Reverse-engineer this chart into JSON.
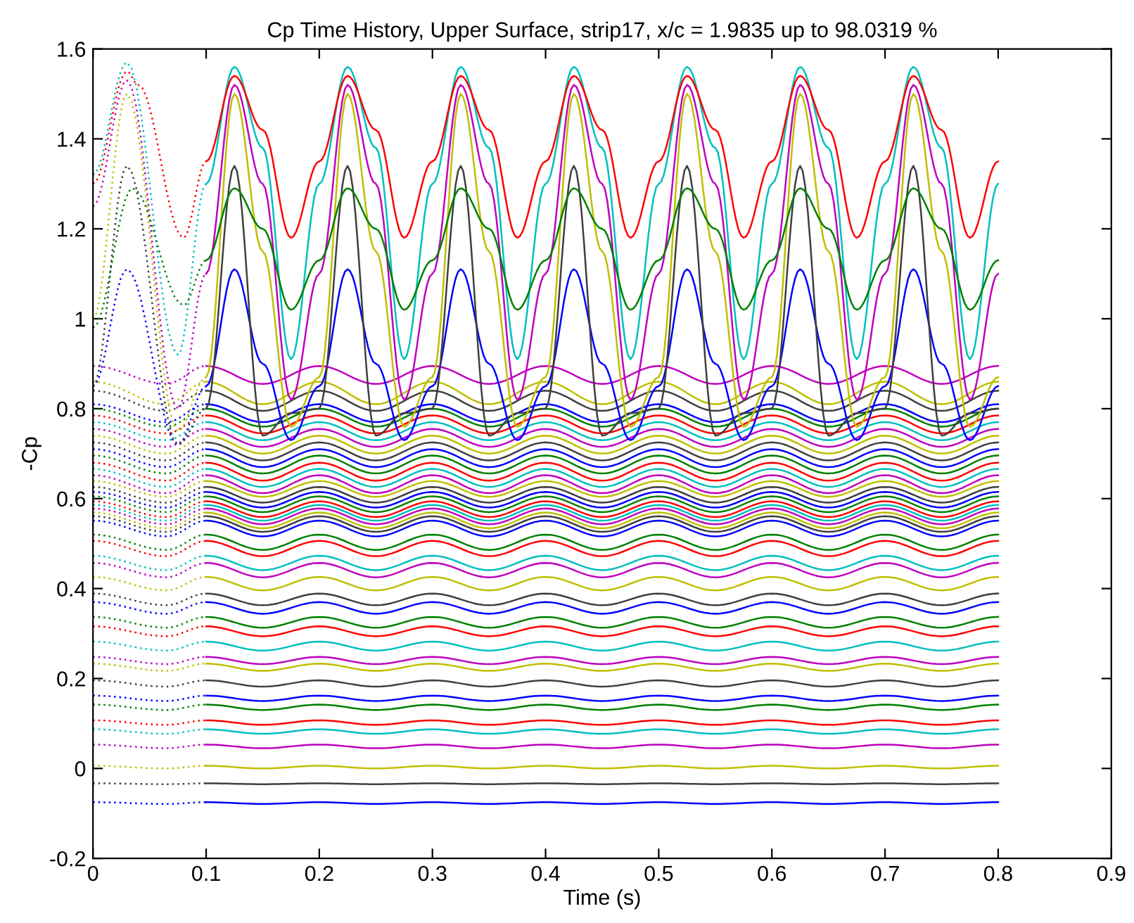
{
  "chart_data": {
    "type": "line",
    "title": "Cp Time History, Upper Surface, strip17, x/c = 1.9835 up to 98.0319 %",
    "xlabel": "Time (s)",
    "ylabel": "-Cp",
    "xlim": [
      0,
      0.9
    ],
    "ylim": [
      -0.2,
      1.6
    ],
    "xticks": [
      0,
      0.1,
      0.2,
      0.3,
      0.4,
      0.5,
      0.6,
      0.7,
      0.8,
      0.9
    ],
    "yticks": [
      -0.2,
      0,
      0.2,
      0.4,
      0.6,
      0.8,
      1,
      1.2,
      1.4,
      1.6
    ],
    "line_style": "solid",
    "x": [
      0.1,
      0.15,
      0.2,
      0.25,
      0.3,
      0.35,
      0.4,
      0.45,
      0.5,
      0.55,
      0.6,
      0.65,
      0.7,
      0.75,
      0.8
    ],
    "series": [
      {
        "color": "#0000ff",
        "line_style": "dotted",
        "x": [
          0,
          0.065,
          0.1
        ],
        "values": [
          -0.075,
          -0.079,
          -0.075
        ]
      },
      {
        "color": "#0000ff",
        "values": [
          -0.075,
          -0.079,
          -0.075,
          -0.079,
          -0.075,
          -0.079,
          -0.075,
          -0.079,
          -0.075,
          -0.079,
          -0.075,
          -0.079,
          -0.075,
          -0.079,
          -0.075
        ]
      },
      {
        "color": "#3f3f3f",
        "line_style": "dotted",
        "x": [
          0,
          0.065,
          0.1
        ],
        "values": [
          -0.033,
          -0.035,
          -0.033
        ]
      },
      {
        "color": "#3f3f3f",
        "values": [
          -0.033,
          -0.035,
          -0.033,
          -0.035,
          -0.033,
          -0.035,
          -0.033,
          -0.035,
          -0.033,
          -0.035,
          -0.033,
          -0.035,
          -0.033,
          -0.035,
          -0.033
        ]
      },
      {
        "color": "#bfbf00",
        "line_style": "dotted",
        "x": [
          0,
          0.065,
          0.1
        ],
        "values": [
          0.006,
          0.0,
          0.006
        ]
      },
      {
        "color": "#bfbf00",
        "values": [
          0.006,
          0.0,
          0.006,
          0.0,
          0.006,
          0.0,
          0.006,
          0.0,
          0.006,
          0.0,
          0.006,
          0.0,
          0.006,
          0.0,
          0.006
        ]
      },
      {
        "color": "#bf00bf",
        "line_style": "dotted",
        "x": [
          0,
          0.065,
          0.1
        ],
        "values": [
          0.053,
          0.045,
          0.053
        ]
      },
      {
        "color": "#bf00bf",
        "values": [
          0.053,
          0.045,
          0.053,
          0.045,
          0.053,
          0.045,
          0.053,
          0.045,
          0.053,
          0.045,
          0.053,
          0.045,
          0.053,
          0.045,
          0.053
        ]
      },
      {
        "color": "#00bfbf",
        "line_style": "dotted",
        "x": [
          0,
          0.065,
          0.1
        ],
        "values": [
          0.087,
          0.077,
          0.087
        ]
      },
      {
        "color": "#00bfbf",
        "values": [
          0.087,
          0.077,
          0.087,
          0.077,
          0.087,
          0.077,
          0.087,
          0.077,
          0.087,
          0.077,
          0.087,
          0.077,
          0.087,
          0.077,
          0.087
        ]
      },
      {
        "color": "#ff0000",
        "line_style": "dotted",
        "x": [
          0,
          0.065,
          0.1
        ],
        "values": [
          0.107,
          0.097,
          0.107
        ]
      },
      {
        "color": "#ff0000",
        "values": [
          0.107,
          0.097,
          0.107,
          0.097,
          0.107,
          0.097,
          0.107,
          0.097,
          0.107,
          0.097,
          0.107,
          0.097,
          0.107,
          0.097,
          0.107
        ]
      },
      {
        "color": "#008000",
        "line_style": "dotted",
        "x": [
          0,
          0.065,
          0.1
        ],
        "values": [
          0.142,
          0.13,
          0.142
        ]
      },
      {
        "color": "#008000",
        "values": [
          0.142,
          0.13,
          0.142,
          0.13,
          0.142,
          0.13,
          0.142,
          0.13,
          0.142,
          0.13,
          0.142,
          0.13,
          0.142,
          0.13,
          0.142
        ]
      },
      {
        "color": "#0000ff",
        "line_style": "dotted",
        "x": [
          0,
          0.065,
          0.1
        ],
        "values": [
          0.162,
          0.15,
          0.162
        ]
      },
      {
        "color": "#0000ff",
        "values": [
          0.162,
          0.15,
          0.162,
          0.15,
          0.162,
          0.15,
          0.162,
          0.15,
          0.162,
          0.15,
          0.162,
          0.15,
          0.162,
          0.15,
          0.162
        ]
      },
      {
        "color": "#3f3f3f",
        "line_style": "dotted",
        "x": [
          0,
          0.065,
          0.1
        ],
        "values": [
          0.196,
          0.182,
          0.196
        ]
      },
      {
        "color": "#3f3f3f",
        "values": [
          0.196,
          0.182,
          0.196,
          0.182,
          0.196,
          0.182,
          0.196,
          0.182,
          0.196,
          0.182,
          0.196,
          0.182,
          0.196,
          0.182,
          0.196
        ]
      },
      {
        "color": "#bfbf00",
        "line_style": "dotted",
        "x": [
          0,
          0.065,
          0.1
        ],
        "values": [
          0.233,
          0.217,
          0.233
        ]
      },
      {
        "color": "#bfbf00",
        "values": [
          0.233,
          0.217,
          0.233,
          0.217,
          0.233,
          0.217,
          0.233,
          0.217,
          0.233,
          0.217,
          0.233,
          0.217,
          0.233,
          0.217,
          0.233
        ]
      },
      {
        "color": "#bf00bf",
        "line_style": "dotted",
        "x": [
          0,
          0.065,
          0.1
        ],
        "values": [
          0.248,
          0.232,
          0.248
        ]
      },
      {
        "color": "#bf00bf",
        "values": [
          0.248,
          0.232,
          0.248,
          0.232,
          0.248,
          0.232,
          0.248,
          0.232,
          0.248,
          0.232,
          0.248,
          0.232,
          0.248,
          0.232,
          0.248
        ]
      },
      {
        "color": "#00bfbf",
        "line_style": "dotted",
        "x": [
          0,
          0.065,
          0.1
        ],
        "values": [
          0.282,
          0.262,
          0.282
        ]
      },
      {
        "color": "#00bfbf",
        "values": [
          0.282,
          0.262,
          0.282,
          0.262,
          0.282,
          0.262,
          0.282,
          0.262,
          0.282,
          0.262,
          0.282,
          0.262,
          0.282,
          0.262,
          0.282
        ]
      },
      {
        "color": "#ff0000",
        "line_style": "dotted",
        "x": [
          0,
          0.065,
          0.1
        ],
        "values": [
          0.316,
          0.294,
          0.316
        ]
      },
      {
        "color": "#ff0000",
        "values": [
          0.316,
          0.294,
          0.316,
          0.294,
          0.316,
          0.294,
          0.316,
          0.294,
          0.316,
          0.294,
          0.316,
          0.294,
          0.316,
          0.294,
          0.316
        ]
      },
      {
        "color": "#008000",
        "line_style": "dotted",
        "x": [
          0,
          0.065,
          0.1
        ],
        "values": [
          0.337,
          0.313,
          0.337
        ]
      },
      {
        "color": "#008000",
        "values": [
          0.337,
          0.313,
          0.337,
          0.313,
          0.337,
          0.313,
          0.337,
          0.313,
          0.337,
          0.313,
          0.337,
          0.313,
          0.337,
          0.313,
          0.337
        ]
      },
      {
        "color": "#0000ff",
        "line_style": "dotted",
        "x": [
          0,
          0.065,
          0.1
        ],
        "values": [
          0.37,
          0.344,
          0.37
        ]
      },
      {
        "color": "#0000ff",
        "values": [
          0.37,
          0.344,
          0.37,
          0.344,
          0.37,
          0.344,
          0.37,
          0.344,
          0.37,
          0.344,
          0.37,
          0.344,
          0.37,
          0.344,
          0.37
        ]
      },
      {
        "color": "#3f3f3f",
        "line_style": "dotted",
        "x": [
          0,
          0.065,
          0.1
        ],
        "values": [
          0.389,
          0.363,
          0.389
        ]
      },
      {
        "color": "#3f3f3f",
        "values": [
          0.389,
          0.363,
          0.389,
          0.363,
          0.389,
          0.363,
          0.389,
          0.363,
          0.389,
          0.363,
          0.389,
          0.363,
          0.389,
          0.363,
          0.389
        ]
      },
      {
        "color": "#bfbf00",
        "line_style": "dotted",
        "x": [
          0,
          0.065,
          0.1
        ],
        "values": [
          0.426,
          0.396,
          0.426
        ]
      },
      {
        "color": "#bfbf00",
        "values": [
          0.426,
          0.396,
          0.426,
          0.396,
          0.426,
          0.396,
          0.426,
          0.396,
          0.426,
          0.396,
          0.426,
          0.396,
          0.426,
          0.396,
          0.426
        ]
      },
      {
        "color": "#bf00bf",
        "line_style": "dotted",
        "x": [
          0,
          0.065,
          0.1
        ],
        "values": [
          0.457,
          0.425,
          0.457
        ]
      },
      {
        "color": "#bf00bf",
        "values": [
          0.457,
          0.425,
          0.457,
          0.425,
          0.457,
          0.425,
          0.457,
          0.425,
          0.457,
          0.425,
          0.457,
          0.425,
          0.457,
          0.425,
          0.457
        ]
      },
      {
        "color": "#00bfbf",
        "line_style": "dotted",
        "x": [
          0,
          0.065,
          0.1
        ],
        "values": [
          0.473,
          0.441,
          0.473
        ]
      },
      {
        "color": "#00bfbf",
        "values": [
          0.473,
          0.441,
          0.473,
          0.441,
          0.473,
          0.441,
          0.473,
          0.441,
          0.473,
          0.441,
          0.473,
          0.441,
          0.473,
          0.441,
          0.473
        ]
      },
      {
        "color": "#ff0000",
        "line_style": "dotted",
        "x": [
          0,
          0.065,
          0.1
        ],
        "values": [
          0.506,
          0.472,
          0.506
        ]
      },
      {
        "color": "#ff0000",
        "values": [
          0.506,
          0.472,
          0.506,
          0.472,
          0.506,
          0.472,
          0.506,
          0.472,
          0.506,
          0.472,
          0.506,
          0.472,
          0.506,
          0.472,
          0.506
        ]
      },
      {
        "color": "#008000",
        "line_style": "dotted",
        "x": [
          0,
          0.065,
          0.1
        ],
        "values": [
          0.52,
          0.486,
          0.52
        ]
      },
      {
        "color": "#008000",
        "values": [
          0.52,
          0.486,
          0.52,
          0.486,
          0.52,
          0.486,
          0.52,
          0.486,
          0.52,
          0.486,
          0.52,
          0.486,
          0.52,
          0.486,
          0.52
        ]
      },
      {
        "color": "#0000ff",
        "line_style": "dotted",
        "x": [
          0,
          0.065,
          0.1
        ],
        "values": [
          0.551,
          0.516,
          0.551
        ]
      },
      {
        "color": "#0000ff",
        "values": [
          0.551,
          0.516,
          0.551,
          0.516,
          0.551,
          0.516,
          0.551,
          0.516,
          0.551,
          0.516,
          0.551,
          0.516,
          0.551,
          0.516,
          0.551
        ]
      },
      {
        "color": "#3f3f3f",
        "line_style": "dotted",
        "x": [
          0,
          0.065,
          0.1
        ],
        "values": [
          0.561,
          0.526,
          0.561
        ]
      },
      {
        "color": "#3f3f3f",
        "values": [
          0.561,
          0.526,
          0.561,
          0.526,
          0.561,
          0.526,
          0.561,
          0.526,
          0.561,
          0.526,
          0.561,
          0.526,
          0.561,
          0.526,
          0.561
        ]
      },
      {
        "color": "#bfbf00",
        "line_style": "dotted",
        "x": [
          0,
          0.065,
          0.1
        ],
        "values": [
          0.569,
          0.534,
          0.569
        ]
      },
      {
        "color": "#bfbf00",
        "values": [
          0.569,
          0.534,
          0.569,
          0.534,
          0.569,
          0.534,
          0.569,
          0.534,
          0.569,
          0.534,
          0.569,
          0.534,
          0.569,
          0.534,
          0.569
        ]
      },
      {
        "color": "#bf00bf",
        "line_style": "dotted",
        "x": [
          0,
          0.065,
          0.1
        ],
        "values": [
          0.578,
          0.543,
          0.578
        ]
      },
      {
        "color": "#bf00bf",
        "values": [
          0.578,
          0.543,
          0.578,
          0.543,
          0.578,
          0.543,
          0.578,
          0.543,
          0.578,
          0.543,
          0.578,
          0.543,
          0.578,
          0.543,
          0.578
        ]
      },
      {
        "color": "#00bfbf",
        "line_style": "dotted",
        "x": [
          0,
          0.065,
          0.1
        ],
        "values": [
          0.586,
          0.551,
          0.586
        ]
      },
      {
        "color": "#00bfbf",
        "values": [
          0.586,
          0.551,
          0.586,
          0.551,
          0.586,
          0.551,
          0.586,
          0.551,
          0.586,
          0.551,
          0.586,
          0.551,
          0.586,
          0.551,
          0.586
        ]
      },
      {
        "color": "#ff0000",
        "line_style": "dotted",
        "x": [
          0,
          0.065,
          0.1
        ],
        "values": [
          0.594,
          0.559,
          0.594
        ]
      },
      {
        "color": "#ff0000",
        "values": [
          0.594,
          0.559,
          0.594,
          0.559,
          0.594,
          0.559,
          0.594,
          0.559,
          0.594,
          0.559,
          0.594,
          0.559,
          0.594,
          0.559,
          0.594
        ]
      },
      {
        "color": "#008000",
        "line_style": "dotted",
        "x": [
          0,
          0.065,
          0.1
        ],
        "values": [
          0.605,
          0.57,
          0.605
        ]
      },
      {
        "color": "#008000",
        "values": [
          0.605,
          0.57,
          0.605,
          0.57,
          0.605,
          0.57,
          0.605,
          0.57,
          0.605,
          0.57,
          0.605,
          0.57,
          0.605,
          0.57,
          0.605
        ]
      },
      {
        "color": "#0000ff",
        "line_style": "dotted",
        "x": [
          0,
          0.065,
          0.1
        ],
        "values": [
          0.615,
          0.58,
          0.615
        ]
      },
      {
        "color": "#0000ff",
        "values": [
          0.615,
          0.58,
          0.615,
          0.58,
          0.615,
          0.58,
          0.615,
          0.58,
          0.615,
          0.58,
          0.615,
          0.58,
          0.615,
          0.58,
          0.615
        ]
      },
      {
        "color": "#3f3f3f",
        "line_style": "dotted",
        "x": [
          0,
          0.065,
          0.1
        ],
        "values": [
          0.626,
          0.591,
          0.626
        ]
      },
      {
        "color": "#3f3f3f",
        "values": [
          0.626,
          0.591,
          0.626,
          0.591,
          0.626,
          0.591,
          0.626,
          0.591,
          0.626,
          0.591,
          0.626,
          0.591,
          0.626,
          0.591,
          0.626
        ]
      },
      {
        "color": "#bfbf00",
        "line_style": "dotted",
        "x": [
          0,
          0.065,
          0.1
        ],
        "values": [
          0.639,
          0.604,
          0.639
        ]
      },
      {
        "color": "#bfbf00",
        "values": [
          0.639,
          0.604,
          0.639,
          0.604,
          0.639,
          0.604,
          0.639,
          0.604,
          0.639,
          0.604,
          0.639,
          0.604,
          0.639,
          0.604,
          0.639
        ]
      },
      {
        "color": "#bf00bf",
        "line_style": "dotted",
        "x": [
          0,
          0.065,
          0.1
        ],
        "values": [
          0.652,
          0.612,
          0.652
        ]
      },
      {
        "color": "#bf00bf",
        "values": [
          0.652,
          0.612,
          0.652,
          0.612,
          0.652,
          0.612,
          0.652,
          0.612,
          0.652,
          0.612,
          0.652,
          0.612,
          0.652,
          0.612,
          0.652
        ]
      },
      {
        "color": "#00bfbf",
        "line_style": "dotted",
        "x": [
          0,
          0.065,
          0.1
        ],
        "values": [
          0.666,
          0.626,
          0.666
        ]
      },
      {
        "color": "#00bfbf",
        "values": [
          0.666,
          0.626,
          0.666,
          0.626,
          0.666,
          0.626,
          0.666,
          0.626,
          0.666,
          0.626,
          0.666,
          0.626,
          0.666,
          0.626,
          0.666
        ]
      },
      {
        "color": "#ff0000",
        "line_style": "dotted",
        "x": [
          0,
          0.065,
          0.1
        ],
        "values": [
          0.68,
          0.64,
          0.68
        ]
      },
      {
        "color": "#ff0000",
        "values": [
          0.68,
          0.64,
          0.68,
          0.64,
          0.68,
          0.64,
          0.68,
          0.64,
          0.68,
          0.64,
          0.68,
          0.64,
          0.68,
          0.64,
          0.68
        ]
      },
      {
        "color": "#008000",
        "line_style": "dotted",
        "x": [
          0,
          0.065,
          0.1
        ],
        "values": [
          0.696,
          0.656,
          0.696
        ]
      },
      {
        "color": "#008000",
        "values": [
          0.696,
          0.656,
          0.696,
          0.656,
          0.696,
          0.656,
          0.696,
          0.656,
          0.696,
          0.656,
          0.696,
          0.656,
          0.696,
          0.656,
          0.696
        ]
      },
      {
        "color": "#0000ff",
        "line_style": "dotted",
        "x": [
          0,
          0.065,
          0.1
        ],
        "values": [
          0.71,
          0.67,
          0.71
        ]
      },
      {
        "color": "#0000ff",
        "values": [
          0.71,
          0.67,
          0.71,
          0.67,
          0.71,
          0.67,
          0.71,
          0.67,
          0.71,
          0.67,
          0.71,
          0.67,
          0.71,
          0.67,
          0.71
        ]
      },
      {
        "color": "#3f3f3f",
        "line_style": "dotted",
        "x": [
          0,
          0.065,
          0.1
        ],
        "values": [
          0.725,
          0.685,
          0.725
        ]
      },
      {
        "color": "#3f3f3f",
        "values": [
          0.725,
          0.685,
          0.725,
          0.685,
          0.725,
          0.685,
          0.725,
          0.685,
          0.725,
          0.685,
          0.725,
          0.685,
          0.725,
          0.685,
          0.725
        ]
      },
      {
        "color": "#bfbf00",
        "line_style": "dotted",
        "x": [
          0,
          0.065,
          0.1
        ],
        "values": [
          0.74,
          0.7,
          0.74
        ]
      },
      {
        "color": "#bfbf00",
        "values": [
          0.74,
          0.7,
          0.74,
          0.7,
          0.74,
          0.7,
          0.74,
          0.7,
          0.74,
          0.7,
          0.74,
          0.7,
          0.74,
          0.7,
          0.74
        ]
      },
      {
        "color": "#bf00bf",
        "line_style": "dotted",
        "x": [
          0,
          0.065,
          0.1
        ],
        "values": [
          0.755,
          0.715,
          0.755
        ]
      },
      {
        "color": "#bf00bf",
        "values": [
          0.755,
          0.715,
          0.755,
          0.715,
          0.755,
          0.715,
          0.755,
          0.715,
          0.755,
          0.715,
          0.755,
          0.715,
          0.755,
          0.715,
          0.755
        ]
      },
      {
        "color": "#00bfbf",
        "line_style": "dotted",
        "x": [
          0,
          0.065,
          0.1
        ],
        "values": [
          0.77,
          0.73,
          0.77
        ]
      },
      {
        "color": "#00bfbf",
        "values": [
          0.77,
          0.73,
          0.77,
          0.73,
          0.77,
          0.73,
          0.77,
          0.73,
          0.77,
          0.73,
          0.77,
          0.73,
          0.77,
          0.73,
          0.77
        ]
      },
      {
        "color": "#ff0000",
        "line_style": "dotted",
        "x": [
          0,
          0.065,
          0.1
        ],
        "values": [
          0.785,
          0.745,
          0.785
        ]
      },
      {
        "color": "#ff0000",
        "values": [
          0.785,
          0.745,
          0.785,
          0.745,
          0.785,
          0.745,
          0.785,
          0.745,
          0.785,
          0.745,
          0.785,
          0.745,
          0.785,
          0.745,
          0.785
        ]
      },
      {
        "color": "#008000",
        "line_style": "dotted",
        "x": [
          0,
          0.065,
          0.1
        ],
        "values": [
          0.8,
          0.76,
          0.8
        ]
      },
      {
        "color": "#008000",
        "values": [
          0.8,
          0.76,
          0.8,
          0.76,
          0.8,
          0.76,
          0.8,
          0.76,
          0.8,
          0.76,
          0.8,
          0.76,
          0.8,
          0.76,
          0.8
        ]
      },
      {
        "color": "#0000ff",
        "line_style": "dotted",
        "x": [
          0,
          0.065,
          0.1
        ],
        "values": [
          0.81,
          0.77,
          0.81
        ]
      },
      {
        "color": "#0000ff",
        "values": [
          0.81,
          0.77,
          0.81,
          0.77,
          0.81,
          0.77,
          0.81,
          0.77,
          0.81,
          0.77,
          0.81,
          0.77,
          0.81,
          0.77,
          0.81
        ]
      },
      {
        "color": "#3f3f3f",
        "line_style": "dotted",
        "x": [
          0,
          0.065,
          0.1
        ],
        "values": [
          0.84,
          0.795,
          0.84
        ]
      },
      {
        "color": "#3f3f3f",
        "values": [
          0.84,
          0.795,
          0.84,
          0.795,
          0.84,
          0.795,
          0.84,
          0.795,
          0.84,
          0.795,
          0.84,
          0.795,
          0.84,
          0.795,
          0.84
        ]
      },
      {
        "color": "#bfbf00",
        "line_style": "dotted",
        "x": [
          0,
          0.065,
          0.1
        ],
        "values": [
          0.86,
          0.81,
          0.86
        ]
      },
      {
        "color": "#bfbf00",
        "values": [
          0.86,
          0.81,
          0.86,
          0.81,
          0.86,
          0.81,
          0.86,
          0.81,
          0.86,
          0.81,
          0.86,
          0.81,
          0.86,
          0.81,
          0.86
        ]
      },
      {
        "color": "#bf00bf",
        "line_style": "dotted",
        "x": [
          0,
          0.065,
          0.1
        ],
        "values": [
          0.895,
          0.855,
          0.895
        ]
      },
      {
        "color": "#bf00bf",
        "values": [
          0.895,
          0.855,
          0.895,
          0.855,
          0.895,
          0.855,
          0.895,
          0.855,
          0.895,
          0.855,
          0.895,
          0.855,
          0.895,
          0.855,
          0.895
        ]
      },
      {
        "color": "#0000ff",
        "line_style": "dotted",
        "x": [
          0,
          0.03,
          0.075,
          0.1
        ],
        "values": [
          0.85,
          1.11,
          0.72,
          0.85
        ]
      },
      {
        "color": "#0000ff",
        "x": [
          0.1,
          0.125,
          0.15,
          0.175,
          0.2,
          0.225,
          0.25,
          0.275,
          0.3,
          0.325,
          0.35,
          0.375,
          0.4,
          0.425,
          0.45,
          0.475,
          0.5,
          0.525,
          0.55,
          0.575,
          0.6,
          0.625,
          0.65,
          0.675,
          0.7,
          0.725,
          0.75,
          0.775,
          0.8
        ],
        "values": [
          0.85,
          1.11,
          0.9,
          0.73,
          0.85,
          1.11,
          0.9,
          0.73,
          0.85,
          1.11,
          0.9,
          0.73,
          0.85,
          1.11,
          0.9,
          0.73,
          0.85,
          1.11,
          0.9,
          0.73,
          0.85,
          1.11,
          0.9,
          0.73,
          0.85,
          1.11,
          0.9,
          0.73,
          0.85
        ]
      },
      {
        "color": "#3f3f3f",
        "line_style": "dotted",
        "x": [
          0,
          0.03,
          0.075,
          0.1
        ],
        "values": [
          0.85,
          1.34,
          0.72,
          0.8
        ]
      },
      {
        "color": "#3f3f3f",
        "x": [
          0.1,
          0.125,
          0.15,
          0.175,
          0.2,
          0.225,
          0.25,
          0.275,
          0.3,
          0.325,
          0.35,
          0.375,
          0.4,
          0.425,
          0.45,
          0.475,
          0.5,
          0.525,
          0.55,
          0.575,
          0.6,
          0.625,
          0.65,
          0.675,
          0.7,
          0.725,
          0.75,
          0.775,
          0.8
        ],
        "values": [
          0.8,
          1.34,
          0.74,
          0.79,
          0.8,
          1.34,
          0.74,
          0.79,
          0.8,
          1.34,
          0.74,
          0.79,
          0.8,
          1.34,
          0.74,
          0.79,
          0.8,
          1.34,
          0.74,
          0.79,
          0.8,
          1.34,
          0.74,
          0.79,
          0.8,
          1.34,
          0.74,
          0.79,
          0.8
        ]
      },
      {
        "color": "#bfbf00",
        "line_style": "dotted",
        "x": [
          0,
          0.03,
          0.075,
          0.1
        ],
        "values": [
          1.0,
          1.5,
          0.75,
          0.87
        ]
      },
      {
        "color": "#bfbf00",
        "x": [
          0.1,
          0.125,
          0.15,
          0.175,
          0.2,
          0.225,
          0.25,
          0.275,
          0.3,
          0.325,
          0.35,
          0.375,
          0.4,
          0.425,
          0.45,
          0.475,
          0.5,
          0.525,
          0.55,
          0.575,
          0.6,
          0.625,
          0.65,
          0.675,
          0.7,
          0.725,
          0.75,
          0.775,
          0.8
        ],
        "values": [
          0.87,
          1.5,
          1.15,
          0.76,
          0.87,
          1.5,
          1.15,
          0.76,
          0.87,
          1.5,
          1.15,
          0.76,
          0.87,
          1.5,
          1.15,
          0.76,
          0.87,
          1.5,
          1.15,
          0.76,
          0.87,
          1.5,
          1.15,
          0.76,
          0.87,
          1.5,
          1.15,
          0.76,
          0.87
        ]
      },
      {
        "color": "#bf00bf",
        "line_style": "dotted",
        "x": [
          0,
          0.03,
          0.075,
          0.1
        ],
        "values": [
          1.25,
          1.53,
          0.8,
          1.1
        ]
      },
      {
        "color": "#bf00bf",
        "x": [
          0.1,
          0.125,
          0.15,
          0.175,
          0.2,
          0.225,
          0.25,
          0.275,
          0.3,
          0.325,
          0.35,
          0.375,
          0.4,
          0.425,
          0.45,
          0.475,
          0.5,
          0.525,
          0.55,
          0.575,
          0.6,
          0.625,
          0.65,
          0.675,
          0.7,
          0.725,
          0.75,
          0.775,
          0.8
        ],
        "values": [
          1.1,
          1.52,
          1.3,
          0.82,
          1.1,
          1.52,
          1.3,
          0.82,
          1.1,
          1.52,
          1.3,
          0.82,
          1.1,
          1.52,
          1.3,
          0.82,
          1.1,
          1.52,
          1.3,
          0.82,
          1.1,
          1.52,
          1.3,
          0.82,
          1.1,
          1.52,
          1.3,
          0.82,
          1.1
        ]
      },
      {
        "color": "#00bfbf",
        "line_style": "dotted",
        "x": [
          0,
          0.03,
          0.075,
          0.1
        ],
        "values": [
          1.32,
          1.57,
          0.92,
          1.3
        ]
      },
      {
        "color": "#00bfbf",
        "x": [
          0.1,
          0.125,
          0.15,
          0.175,
          0.2,
          0.225,
          0.25,
          0.275,
          0.3,
          0.325,
          0.35,
          0.375,
          0.4,
          0.425,
          0.45,
          0.475,
          0.5,
          0.525,
          0.55,
          0.575,
          0.6,
          0.625,
          0.65,
          0.675,
          0.7,
          0.725,
          0.75,
          0.775,
          0.8
        ],
        "values": [
          1.3,
          1.56,
          1.38,
          0.91,
          1.3,
          1.56,
          1.38,
          0.91,
          1.3,
          1.56,
          1.38,
          0.91,
          1.3,
          1.56,
          1.38,
          0.91,
          1.3,
          1.56,
          1.38,
          0.91,
          1.3,
          1.56,
          1.38,
          0.91,
          1.3,
          1.56,
          1.38,
          0.91,
          1.3
        ]
      },
      {
        "color": "#ff0000",
        "line_style": "dotted",
        "x": [
          0,
          0.03,
          0.04,
          0.08,
          0.1
        ],
        "values": [
          1.3,
          1.55,
          1.52,
          1.18,
          1.35
        ]
      },
      {
        "color": "#ff0000",
        "x": [
          0.1,
          0.125,
          0.15,
          0.175,
          0.2,
          0.225,
          0.25,
          0.275,
          0.3,
          0.325,
          0.35,
          0.375,
          0.4,
          0.425,
          0.45,
          0.475,
          0.5,
          0.525,
          0.55,
          0.575,
          0.6,
          0.625,
          0.65,
          0.675,
          0.7,
          0.725,
          0.75,
          0.775,
          0.8
        ],
        "values": [
          1.35,
          1.54,
          1.42,
          1.18,
          1.35,
          1.54,
          1.42,
          1.18,
          1.35,
          1.54,
          1.42,
          1.18,
          1.35,
          1.54,
          1.42,
          1.18,
          1.35,
          1.54,
          1.42,
          1.18,
          1.35,
          1.54,
          1.42,
          1.18,
          1.35,
          1.54,
          1.42,
          1.18,
          1.35
        ]
      },
      {
        "color": "#008000",
        "line_style": "dotted",
        "x": [
          0,
          0.035,
          0.08,
          0.1
        ],
        "values": [
          0.98,
          1.29,
          1.03,
          1.13
        ]
      },
      {
        "color": "#008000",
        "x": [
          0.1,
          0.125,
          0.15,
          0.175,
          0.2,
          0.225,
          0.25,
          0.275,
          0.3,
          0.325,
          0.35,
          0.375,
          0.4,
          0.425,
          0.45,
          0.475,
          0.5,
          0.525,
          0.55,
          0.575,
          0.6,
          0.625,
          0.65,
          0.675,
          0.7,
          0.725,
          0.75,
          0.775,
          0.8
        ],
        "values": [
          1.13,
          1.29,
          1.2,
          1.02,
          1.13,
          1.29,
          1.2,
          1.02,
          1.13,
          1.29,
          1.2,
          1.02,
          1.13,
          1.29,
          1.2,
          1.02,
          1.13,
          1.29,
          1.2,
          1.02,
          1.13,
          1.29,
          1.2,
          1.02,
          1.13,
          1.29,
          1.2,
          1.02,
          1.13
        ]
      }
    ]
  }
}
